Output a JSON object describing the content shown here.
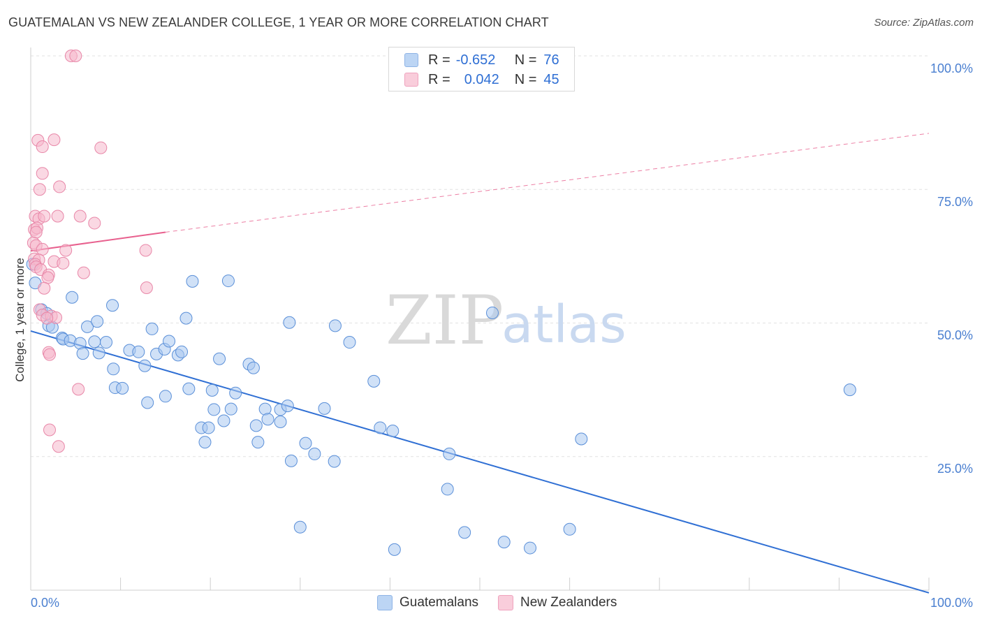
{
  "title": "GUATEMALAN VS NEW ZEALANDER COLLEGE, 1 YEAR OR MORE CORRELATION CHART",
  "source": "Source: ZipAtlas.com",
  "watermark": {
    "zip": "ZIP",
    "atlas": "atlas"
  },
  "legend": {
    "rows": [
      {
        "r_label": "R =",
        "r_value": "-0.652",
        "n_label": "N =",
        "n_value": "76",
        "color": "#a9c8f0"
      },
      {
        "r_label": "R =",
        "r_value": "0.042",
        "n_label": "N =",
        "n_value": "45",
        "color": "#f6b8cc"
      }
    ]
  },
  "bottom_legend": [
    "Guatemalans",
    "New Zealanders"
  ],
  "chart_data": {
    "type": "scatter",
    "title": "GUATEMALAN VS NEW ZEALANDER COLLEGE, 1 YEAR OR MORE CORRELATION CHART",
    "xlabel": "",
    "ylabel": "College, 1 year or more",
    "xlim": [
      0,
      100
    ],
    "ylim": [
      0,
      100
    ],
    "x_tick_labels": [
      "0.0%",
      "100.0%"
    ],
    "y_ticks": [
      25,
      50,
      75,
      100
    ],
    "y_tick_labels": [
      "25.0%",
      "50.0%",
      "75.0%",
      "100.0%"
    ],
    "grid": true,
    "series": [
      {
        "name": "Guatemalans",
        "color": "#a9c8f0",
        "stroke": "#5a8fd8",
        "trend_color": "#2f6fd4",
        "trend": {
          "x0": 0,
          "y0": 48.5,
          "x1": 100,
          "y1": -0.5
        },
        "points": [
          [
            0.2,
            61
          ],
          [
            0.5,
            57.5
          ],
          [
            1.2,
            52.5
          ],
          [
            1.8,
            51.8
          ],
          [
            2.0,
            49.5
          ],
          [
            2.4,
            49.2
          ],
          [
            3.5,
            47.2
          ],
          [
            3.6,
            47.0
          ],
          [
            4.4,
            46.7
          ],
          [
            5.5,
            46.2
          ],
          [
            5.8,
            44.3
          ],
          [
            4.6,
            54.8
          ],
          [
            6.3,
            49.3
          ],
          [
            7.4,
            50.3
          ],
          [
            7.1,
            46.5
          ],
          [
            8.4,
            46.4
          ],
          [
            7.6,
            44.4
          ],
          [
            9.2,
            41.4
          ],
          [
            9.4,
            37.9
          ],
          [
            10.2,
            37.8
          ],
          [
            9.1,
            53.3
          ],
          [
            11.0,
            44.9
          ],
          [
            12.0,
            44.6
          ],
          [
            12.7,
            42.0
          ],
          [
            13.5,
            48.9
          ],
          [
            14.0,
            44.2
          ],
          [
            14.9,
            45.1
          ],
          [
            13.0,
            35.1
          ],
          [
            15.0,
            36.3
          ],
          [
            15.4,
            46.6
          ],
          [
            16.4,
            44.0
          ],
          [
            16.8,
            44.6
          ],
          [
            17.3,
            50.9
          ],
          [
            17.6,
            37.7
          ],
          [
            18.0,
            57.8
          ],
          [
            19.0,
            30.4
          ],
          [
            19.4,
            27.7
          ],
          [
            19.8,
            30.4
          ],
          [
            20.2,
            37.4
          ],
          [
            20.4,
            33.8
          ],
          [
            21.0,
            43.3
          ],
          [
            21.5,
            31.7
          ],
          [
            22.0,
            57.9
          ],
          [
            22.3,
            33.9
          ],
          [
            22.8,
            36.9
          ],
          [
            24.3,
            42.3
          ],
          [
            24.8,
            41.6
          ],
          [
            25.1,
            30.8
          ],
          [
            25.3,
            27.7
          ],
          [
            26.1,
            33.9
          ],
          [
            26.4,
            32.0
          ],
          [
            27.8,
            31.5
          ],
          [
            27.8,
            33.8
          ],
          [
            28.6,
            34.5
          ],
          [
            28.8,
            50.1
          ],
          [
            29.0,
            24.2
          ],
          [
            30.0,
            11.8
          ],
          [
            30.6,
            27.5
          ],
          [
            31.6,
            25.5
          ],
          [
            32.7,
            34.0
          ],
          [
            33.9,
            49.5
          ],
          [
            35.5,
            46.4
          ],
          [
            33.8,
            24.1
          ],
          [
            38.2,
            39.1
          ],
          [
            38.9,
            30.4
          ],
          [
            40.3,
            29.8
          ],
          [
            40.5,
            7.6
          ],
          [
            46.6,
            25.5
          ],
          [
            46.4,
            18.9
          ],
          [
            48.3,
            10.8
          ],
          [
            51.4,
            51.9
          ],
          [
            52.7,
            9.0
          ],
          [
            55.6,
            7.9
          ],
          [
            60.0,
            11.4
          ],
          [
            61.3,
            28.3
          ],
          [
            91.2,
            37.5
          ]
        ]
      },
      {
        "name": "New Zealanders",
        "color": "#f6b8cc",
        "stroke": "#e887a8",
        "trend_color": "#e8608e",
        "trend": {
          "x0": 0,
          "y0": 63.5,
          "x1": 15,
          "y1": 67.0
        },
        "trend_extended": {
          "x0": 15,
          "y0": 67.0,
          "x1": 100,
          "y1": 85.5
        },
        "points": [
          [
            4.5,
            100
          ],
          [
            5.0,
            100
          ],
          [
            0.8,
            84.2
          ],
          [
            1.3,
            83.0
          ],
          [
            2.6,
            84.3
          ],
          [
            7.8,
            82.8
          ],
          [
            1.3,
            78.0
          ],
          [
            1.0,
            75.0
          ],
          [
            3.2,
            75.5
          ],
          [
            0.5,
            70.0
          ],
          [
            0.9,
            69.5
          ],
          [
            1.5,
            70.0
          ],
          [
            3.0,
            70.0
          ],
          [
            5.5,
            70.0
          ],
          [
            7.1,
            68.7
          ],
          [
            0.4,
            67.5
          ],
          [
            0.7,
            67.8
          ],
          [
            0.6,
            67.0
          ],
          [
            0.3,
            65.0
          ],
          [
            0.6,
            64.5
          ],
          [
            1.3,
            63.8
          ],
          [
            3.9,
            63.6
          ],
          [
            12.8,
            63.6
          ],
          [
            0.4,
            62.0
          ],
          [
            0.9,
            61.8
          ],
          [
            2.6,
            61.5
          ],
          [
            3.6,
            61.2
          ],
          [
            0.5,
            61.0
          ],
          [
            0.6,
            60.5
          ],
          [
            1.1,
            60.0
          ],
          [
            2.0,
            59.0
          ],
          [
            5.9,
            59.4
          ],
          [
            1.9,
            58.5
          ],
          [
            1.5,
            56.5
          ],
          [
            12.9,
            56.6
          ],
          [
            1.0,
            52.5
          ],
          [
            1.3,
            51.5
          ],
          [
            2.3,
            51.3
          ],
          [
            2.8,
            51.0
          ],
          [
            2.0,
            44.5
          ],
          [
            2.1,
            44.1
          ],
          [
            5.3,
            37.6
          ],
          [
            2.1,
            30.0
          ],
          [
            3.1,
            26.9
          ],
          [
            1.8,
            50.9
          ]
        ]
      }
    ]
  }
}
